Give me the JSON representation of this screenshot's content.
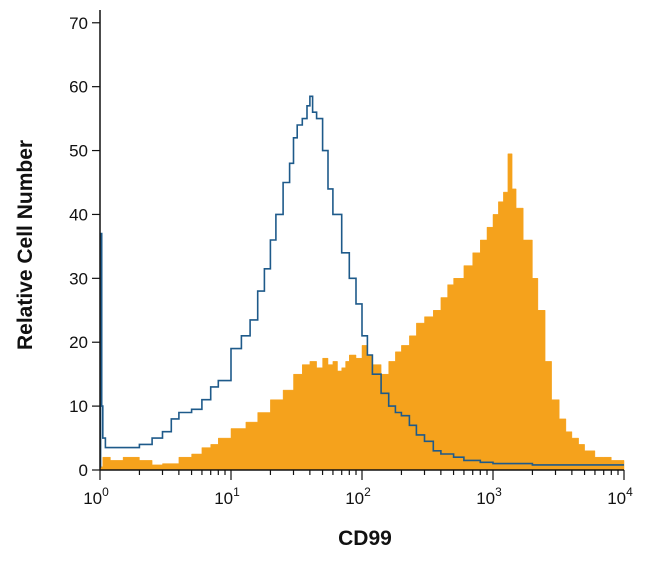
{
  "chart_data": {
    "type": "area",
    "title": "",
    "xlabel": "CD99",
    "ylabel": "Relative Cell Number",
    "xscale": "log",
    "xlim": [
      1,
      10000
    ],
    "ylim": [
      0,
      72
    ],
    "x_tick_labels": [
      {
        "base": "10",
        "exp": "0"
      },
      {
        "base": "10",
        "exp": "1"
      },
      {
        "base": "10",
        "exp": "2"
      },
      {
        "base": "10",
        "exp": "3"
      },
      {
        "base": "10",
        "exp": "4"
      }
    ],
    "y_ticks": [
      0,
      10,
      20,
      30,
      40,
      50,
      60,
      70
    ],
    "y_tick_labels": [
      "0",
      "10",
      "20",
      "30",
      "40",
      "50",
      "60",
      "70"
    ],
    "grid": false,
    "series": [
      {
        "style": "filled",
        "color": "#F5A21C",
        "x": [
          1.0,
          1.05,
          1.2,
          1.5,
          2.0,
          2.5,
          3.0,
          4.0,
          5.0,
          6.0,
          7.0,
          8.0,
          10.0,
          13.0,
          16.0,
          20.0,
          25.0,
          30.0,
          35.0,
          40.0,
          45.0,
          50.0,
          55.0,
          60.0,
          65.0,
          70.0,
          75.0,
          80.0,
          90.0,
          100.0,
          110.0,
          120.0,
          140.0,
          160.0,
          180.0,
          200.0,
          230.0,
          260.0,
          300.0,
          350.0,
          400.0,
          450.0,
          500.0,
          600.0,
          700.0,
          800.0,
          900.0,
          1000.0,
          1100.0,
          1200.0,
          1300.0,
          1400.0,
          1500.0,
          1700.0,
          2000.0,
          2200.0,
          2500.0,
          2800.0,
          3200.0,
          3600.0,
          4000.0,
          4500.0,
          5000.0,
          6000.0,
          7000.0,
          8000.0,
          9000.0,
          10000.0
        ],
        "y": [
          0.5,
          2.0,
          1.5,
          2.0,
          1.5,
          0.8,
          1.0,
          2.0,
          2.5,
          3.5,
          4.0,
          5.0,
          6.5,
          7.5,
          9.0,
          11.0,
          12.5,
          15.0,
          16.5,
          17.0,
          16.0,
          17.5,
          16.5,
          17.0,
          15.5,
          16.0,
          17.0,
          18.0,
          17.5,
          19.5,
          18.0,
          16.5,
          15.0,
          17.0,
          18.5,
          19.5,
          21.0,
          23.0,
          24.0,
          25.0,
          27.0,
          29.0,
          30.0,
          32.0,
          34.0,
          36.0,
          38.0,
          40.0,
          42.0,
          43.5,
          49.5,
          44.0,
          41.0,
          36.0,
          30.0,
          25.0,
          17.0,
          11.0,
          8.0,
          6.0,
          5.0,
          4.0,
          3.0,
          2.0,
          2.0,
          1.5,
          1.5,
          0.8
        ]
      },
      {
        "style": "outline",
        "color": "#1E5A8A",
        "x": [
          1.0,
          1.01,
          1.03,
          1.05,
          1.1,
          1.3,
          1.6,
          2.0,
          2.5,
          3.0,
          3.5,
          4.0,
          5.0,
          6.0,
          7.0,
          8.0,
          10.0,
          12.0,
          14.0,
          16.0,
          18.0,
          20.0,
          22.0,
          25.0,
          28.0,
          30.0,
          32.0,
          35.0,
          38.0,
          40.0,
          42.0,
          45.0,
          50.0,
          55.0,
          60.0,
          70.0,
          80.0,
          90.0,
          100.0,
          110.0,
          120.0,
          140.0,
          160.0,
          180.0,
          200.0,
          230.0,
          260.0,
          300.0,
          350.0,
          400.0,
          500.0,
          600.0,
          800.0,
          1000.0,
          1200.0,
          1500.0,
          2000.0,
          3000.0,
          5000.0,
          7000.0,
          8000.0,
          10000.0
        ],
        "y": [
          0.5,
          37.0,
          10.0,
          5.0,
          3.5,
          3.5,
          3.5,
          4.0,
          5.0,
          6.0,
          8.0,
          9.0,
          9.5,
          11.0,
          13.0,
          14.0,
          19.0,
          21.0,
          23.5,
          28.0,
          31.5,
          36.0,
          40.0,
          45.0,
          48.0,
          52.0,
          54.0,
          55.0,
          57.0,
          58.5,
          56.0,
          55.0,
          50.0,
          44.0,
          40.0,
          34.0,
          30.0,
          26.0,
          21.0,
          18.0,
          15.0,
          12.0,
          10.0,
          9.0,
          8.5,
          7.0,
          5.5,
          4.5,
          3.0,
          2.5,
          2.0,
          1.5,
          1.2,
          1.0,
          1.0,
          1.0,
          0.8,
          0.8,
          0.8,
          0.8,
          0.8,
          0.8
        ]
      }
    ]
  }
}
